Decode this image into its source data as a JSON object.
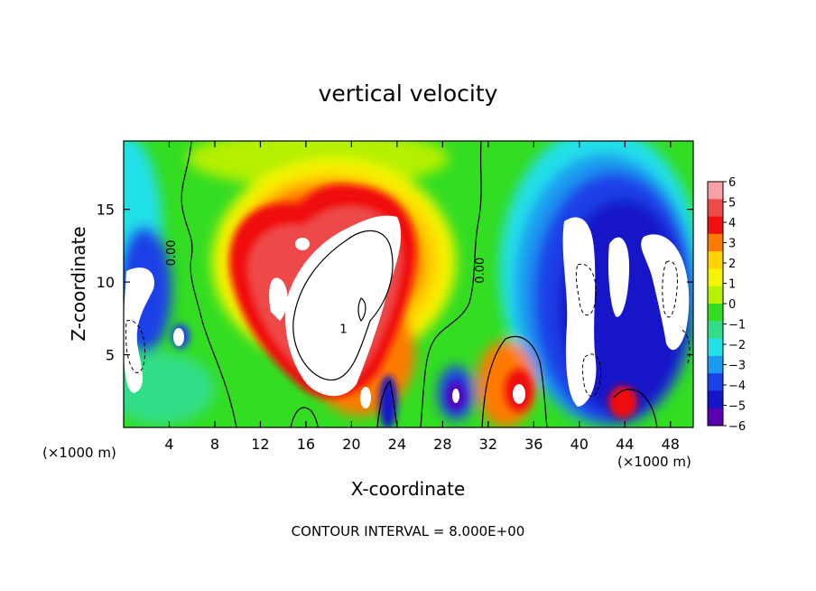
{
  "chart_data": {
    "type": "heatmap",
    "title": "vertical velocity",
    "xlabel": "X-coordinate",
    "ylabel": "Z-coordinate",
    "x_unit_left": "(×1000 m)",
    "x_unit_right": "(×1000 m)",
    "footer": "CONTOUR INTERVAL = 8.000E+00",
    "xlim": [
      0,
      50
    ],
    "ylim": [
      0,
      19.7
    ],
    "x_ticks": [
      4,
      8,
      12,
      16,
      20,
      24,
      28,
      32,
      36,
      40,
      44,
      48
    ],
    "y_ticks": [
      5,
      10,
      15
    ],
    "x_tick_labels": [
      "4",
      "8",
      "12",
      "16",
      "20",
      "24",
      "28",
      "32",
      "36",
      "40",
      "44",
      "48"
    ],
    "y_tick_labels": [
      "5",
      "10",
      "15"
    ],
    "colorbar": {
      "levels": [
        6,
        5,
        4,
        3,
        2,
        1,
        0,
        -1,
        -2,
        -3,
        -4,
        -5,
        -6
      ],
      "labels": [
        "6",
        "5",
        "4",
        "3",
        "2",
        "1",
        "0",
        "−1",
        "−2",
        "−3",
        "−4",
        "−5",
        "−6"
      ],
      "colors": [
        "#f7a0a8",
        "#ee4a4a",
        "#f01010",
        "#ff7a00",
        "#ffd200",
        "#f5f500",
        "#b4f000",
        "#33dd22",
        "#33dd88",
        "#22e0e8",
        "#1a9af0",
        "#1a40e8",
        "#1414c8",
        "#5a00b4"
      ]
    },
    "contour_labels": [
      {
        "text": "0.00",
        "x": 4.5,
        "y": 12.0
      },
      {
        "text": "0.00",
        "x": 31.6,
        "y": 10.8
      },
      {
        "text": "1",
        "x": 19.3,
        "y": 6.5
      }
    ]
  }
}
